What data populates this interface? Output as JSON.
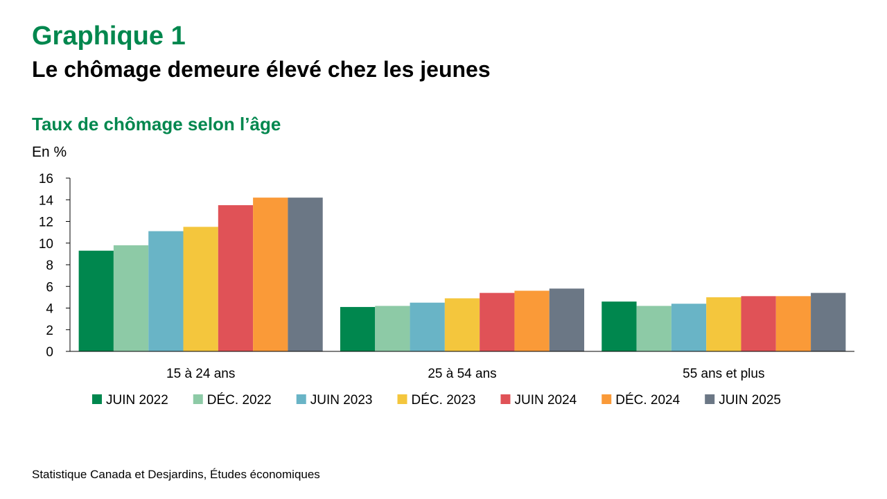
{
  "header": {
    "title": "Graphique 1",
    "subtitle": "Le chômage demeure élevé chez les jeunes"
  },
  "chart_title": "Taux de chômage selon l’âge",
  "unit_label": "En %",
  "source": "Statistique Canada et Desjardins, Études économiques",
  "chart_data": {
    "type": "bar",
    "title": "Taux de chômage selon l’âge",
    "ylabel": "En %",
    "ylim": [
      0,
      16
    ],
    "yticks": [
      0,
      2,
      4,
      6,
      8,
      10,
      12,
      14,
      16
    ],
    "grid": false,
    "legend_position": "bottom",
    "categories": [
      "15 à 24 ans",
      "25 à 54 ans",
      "55 ans et plus"
    ],
    "series": [
      {
        "name": "JUIN 2022",
        "color": "#00874E",
        "values": [
          9.3,
          4.1,
          4.6
        ]
      },
      {
        "name": "DÉC. 2022",
        "color": "#8DCAA6",
        "values": [
          9.8,
          4.2,
          4.2
        ]
      },
      {
        "name": "JUIN 2023",
        "color": "#69B4C6",
        "values": [
          11.1,
          4.5,
          4.4
        ]
      },
      {
        "name": "DÉC. 2023",
        "color": "#F4C63D",
        "values": [
          11.5,
          4.9,
          5.0
        ]
      },
      {
        "name": "JUIN 2024",
        "color": "#E05257",
        "values": [
          13.5,
          5.4,
          5.1
        ]
      },
      {
        "name": "DÉC. 2024",
        "color": "#FA9A38",
        "values": [
          14.2,
          5.6,
          5.1
        ]
      },
      {
        "name": "JUIN 2025",
        "color": "#6B7785",
        "values": [
          14.2,
          5.8,
          5.4
        ]
      }
    ]
  }
}
